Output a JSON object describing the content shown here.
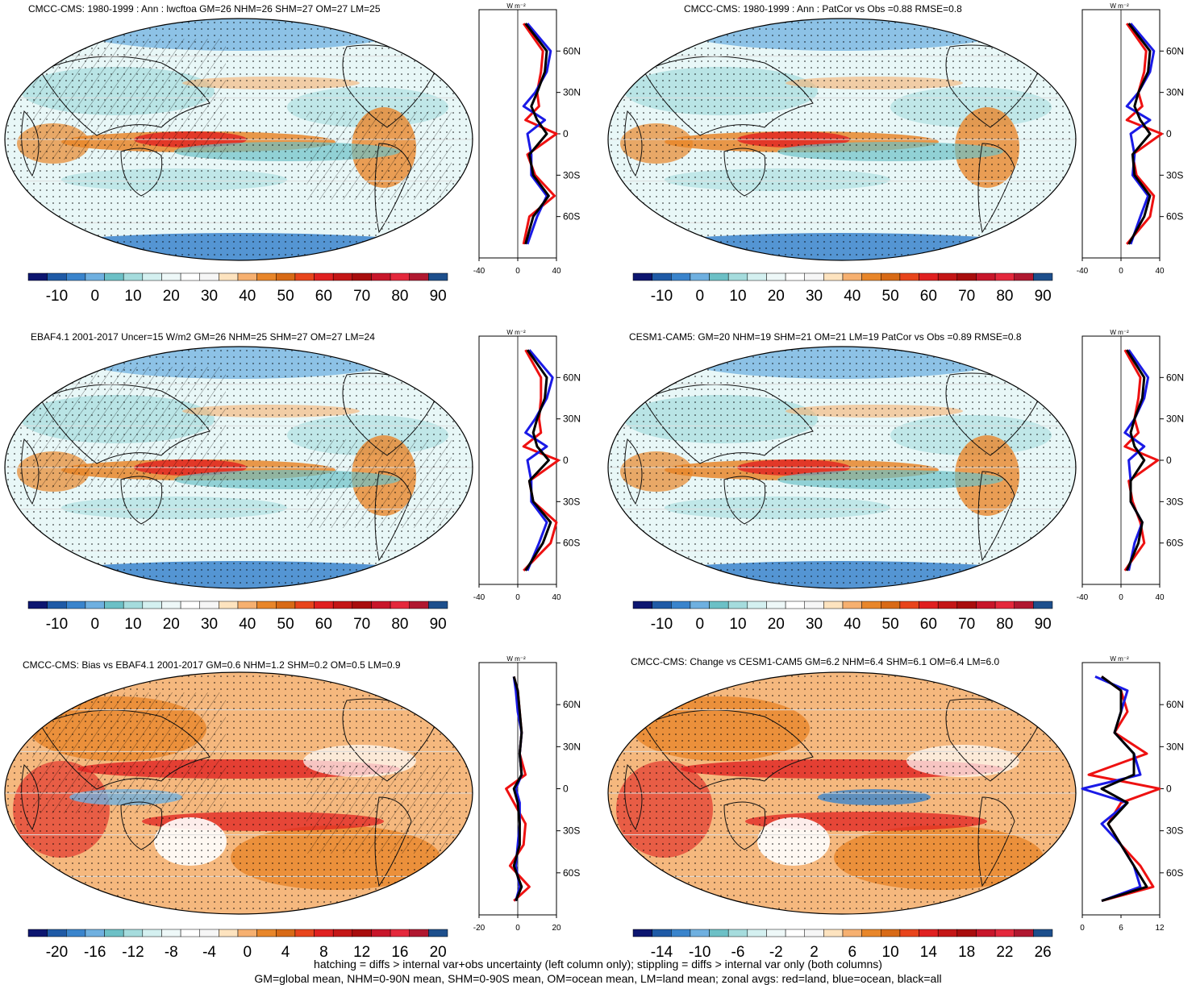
{
  "panels": [
    {
      "id": "p1",
      "title": "CMCC-CMS: 1980-1999 : Ann : lwcftoa GM=26 NHM=26 SHM=27 OM=27 LM=25",
      "hatch": true,
      "pattern": "clim"
    },
    {
      "id": "p2",
      "title": "CMCC-CMS: 1980-1999 : Ann : PatCor vs Obs =0.88 RMSE=0.8",
      "hatch": false,
      "pattern": "clim"
    },
    {
      "id": "p3",
      "title": "EBAF4.1 2001-2017 Uncer=15 W/m2 GM=26 NHM=25 SHM=27 OM=27 LM=24",
      "hatch": true,
      "pattern": "clim"
    },
    {
      "id": "p4",
      "title": "CESM1-CAM5: GM=20 NHM=19 SHM=21 OM=21 LM=19 PatCor vs Obs =0.89 RMSE=0.8",
      "hatch": false,
      "pattern": "clim2"
    },
    {
      "id": "p5",
      "title": "CMCC-CMS: Bias vs EBAF4.1 2001-2017 GM=0.6 NHM=1.2 SHM=0.2 OM=0.5 LM=0.9",
      "hatch": true,
      "pattern": "bias"
    },
    {
      "id": "p6",
      "title": "CMCC-CMS: Change vs CESM1-CAM5 GM=6.2 NHM=6.4 SHM=6.1 OM=6.4 LM=6.0",
      "hatch": false,
      "pattern": "change"
    }
  ],
  "colorbars": [
    {
      "id": "cb-clim",
      "labels": [
        "-10",
        "0",
        "10",
        "20",
        "30",
        "40",
        "50",
        "60",
        "70",
        "80",
        "90"
      ]
    },
    {
      "id": "cb-bias",
      "labels": [
        "-20",
        "-16",
        "-12",
        "-8",
        "-4",
        "0",
        "4",
        "8",
        "12",
        "16",
        "20"
      ]
    },
    {
      "id": "cb-change",
      "labels": [
        "-14",
        "-10",
        "-6",
        "-2",
        "2",
        "6",
        "10",
        "14",
        "18",
        "22",
        "26"
      ]
    }
  ],
  "colors": [
    "#0d1670",
    "#1f5aa6",
    "#3a84cc",
    "#6fb0e0",
    "#6cc0c6",
    "#a5dcdd",
    "#d4f0f0",
    "#eef8f8",
    "#ffffff",
    "#f6f6f6",
    "#fde3bf",
    "#f6b070",
    "#e8862a",
    "#d86a16",
    "#e8451c",
    "#e02020",
    "#c41616",
    "#a80d0d",
    "#c8162a",
    "#e4283c",
    "#b01830",
    "#1d4f8c"
  ],
  "zonal": {
    "unit": "W m⁻²",
    "lat_ticks": [
      "60N",
      "30N",
      "0",
      "30S",
      "60S"
    ],
    "x_ticks_clim": [
      "-40",
      "0",
      "40"
    ],
    "x_ticks_bias": [
      "-20",
      "0",
      "20"
    ],
    "x_ticks_change": [
      "0",
      "6",
      "12"
    ],
    "series_names": [
      "land",
      "ocean",
      "all"
    ],
    "series_colors": {
      "land": "#ee1111",
      "ocean": "#1a1ae6",
      "all": "#000000"
    }
  },
  "chart_data": [
    {
      "type": "line",
      "title": "CMCC-CMS: 1980-1999 : Ann : lwcftoa GM=26 NHM=26 SHM=27 OM=27 LM=25",
      "x_axis": "W m-2",
      "xlim": [
        -40,
        40
      ],
      "ylim": [
        -90,
        90
      ],
      "latitude": [
        -80,
        -60,
        -45,
        -30,
        -15,
        0,
        10,
        20,
        30,
        45,
        60,
        80
      ],
      "series": [
        {
          "name": "land",
          "values": [
            6,
            12,
            38,
            18,
            10,
            40,
            8,
            22,
            20,
            24,
            26,
            6
          ]
        },
        {
          "name": "ocean",
          "values": [
            10,
            20,
            30,
            14,
            14,
            10,
            28,
            6,
            18,
            30,
            34,
            10
          ]
        },
        {
          "name": "all",
          "values": [
            8,
            16,
            32,
            16,
            12,
            30,
            20,
            14,
            20,
            28,
            30,
            8
          ]
        }
      ]
    },
    {
      "type": "line",
      "title": "CMCC-CMS: 1980-1999 : Ann : PatCor vs Obs =0.88 RMSE=0.8",
      "x_axis": "W m-2",
      "xlim": [
        -40,
        40
      ],
      "ylim": [
        -90,
        90
      ],
      "latitude": [
        -80,
        -60,
        -45,
        -30,
        -15,
        0,
        10,
        20,
        30,
        45,
        60,
        80
      ],
      "series": [
        {
          "name": "land",
          "values": [
            6,
            30,
            34,
            16,
            12,
            42,
            6,
            22,
            18,
            24,
            26,
            6
          ]
        },
        {
          "name": "ocean",
          "values": [
            10,
            20,
            28,
            12,
            14,
            10,
            30,
            6,
            18,
            30,
            34,
            10
          ]
        },
        {
          "name": "all",
          "values": [
            8,
            24,
            30,
            14,
            12,
            30,
            20,
            14,
            18,
            28,
            30,
            8
          ]
        }
      ]
    },
    {
      "type": "line",
      "title": "EBAF4.1 2001-2017 Uncer=15 W/m2 GM=26 NHM=25 SHM=27 OM=27 LM=24",
      "x_axis": "W m-2",
      "xlim": [
        -40,
        40
      ],
      "ylim": [
        -90,
        90
      ],
      "latitude": [
        -80,
        -60,
        -45,
        -30,
        -15,
        0,
        10,
        20,
        30,
        45,
        60,
        80
      ],
      "series": [
        {
          "name": "land",
          "values": [
            6,
            34,
            40,
            16,
            12,
            42,
            6,
            24,
            22,
            24,
            24,
            8
          ]
        },
        {
          "name": "ocean",
          "values": [
            10,
            22,
            30,
            14,
            14,
            10,
            30,
            8,
            18,
            30,
            36,
            12
          ]
        },
        {
          "name": "all",
          "values": [
            8,
            26,
            34,
            16,
            12,
            32,
            20,
            16,
            20,
            28,
            30,
            10
          ]
        }
      ]
    },
    {
      "type": "line",
      "title": "CESM1-CAM5: GM=20 NHM=19 SHM=21 OM=21 LM=19 PatCor vs Obs =0.89 RMSE=0.8",
      "x_axis": "W m-2",
      "xlim": [
        -40,
        40
      ],
      "ylim": [
        -90,
        90
      ],
      "latitude": [
        -80,
        -60,
        -45,
        -30,
        -15,
        0,
        10,
        20,
        30,
        45,
        60,
        80
      ],
      "series": [
        {
          "name": "land",
          "values": [
            4,
            24,
            20,
            12,
            8,
            38,
            4,
            18,
            14,
            18,
            20,
            4
          ]
        },
        {
          "name": "ocean",
          "values": [
            8,
            14,
            22,
            10,
            10,
            8,
            24,
            4,
            14,
            24,
            28,
            8
          ]
        },
        {
          "name": "all",
          "values": [
            6,
            18,
            22,
            10,
            10,
            24,
            14,
            10,
            14,
            22,
            24,
            6
          ]
        }
      ]
    },
    {
      "type": "line",
      "title": "CMCC-CMS: Bias vs EBAF4.1 2001-2017 GM=0.6 NHM=1.2 SHM=0.2 OM=0.5 LM=0.9",
      "x_axis": "W m-2",
      "xlim": [
        -20,
        20
      ],
      "ylim": [
        -90,
        90
      ],
      "latitude": [
        -80,
        -70,
        -55,
        -40,
        -25,
        -10,
        0,
        10,
        25,
        40,
        55,
        70,
        80
      ],
      "series": [
        {
          "name": "land",
          "values": [
            -2,
            6,
            -4,
            3,
            4,
            -2,
            -6,
            4,
            1,
            2,
            1,
            0,
            -2
          ]
        },
        {
          "name": "ocean",
          "values": [
            -1,
            1,
            -1,
            0,
            1,
            1,
            -1,
            2,
            1,
            2,
            0,
            -1,
            -2
          ]
        },
        {
          "name": "all",
          "values": [
            -1,
            2,
            -2,
            1,
            1,
            0,
            -2,
            2,
            1,
            2,
            1,
            0,
            -2
          ]
        }
      ]
    },
    {
      "type": "line",
      "title": "CMCC-CMS: Change vs CESM1-CAM5 GM=6.2 NHM=6.4 SHM=6.1 OM=6.4 LM=6.0",
      "x_axis": "W m-2",
      "xlim": [
        0,
        12
      ],
      "ylim": [
        -90,
        90
      ],
      "latitude": [
        -80,
        -70,
        -55,
        -40,
        -25,
        -10,
        0,
        10,
        25,
        40,
        55,
        70,
        80
      ],
      "series": [
        {
          "name": "land",
          "values": [
            3,
            11,
            9,
            6,
            4,
            6,
            12,
            1,
            10,
            5,
            7,
            6,
            3
          ]
        },
        {
          "name": "ocean",
          "values": [
            3,
            9,
            8,
            6,
            3,
            7,
            0,
            9,
            8,
            5,
            6,
            7,
            2
          ]
        },
        {
          "name": "all",
          "values": [
            3,
            10,
            8,
            6,
            4,
            7,
            3,
            8,
            8,
            5,
            6,
            6,
            3
          ]
        }
      ]
    }
  ],
  "footnote_1": "hatching = diffs > internal var+obs uncertainty (left column only); stippling = diffs > internal var only (both columns)",
  "footnote_2": "GM=global mean, NHM=0-90N mean, SHM=0-90S mean, OM=ocean mean, LM=land mean; zonal avgs: red=land, blue=ocean, black=all"
}
